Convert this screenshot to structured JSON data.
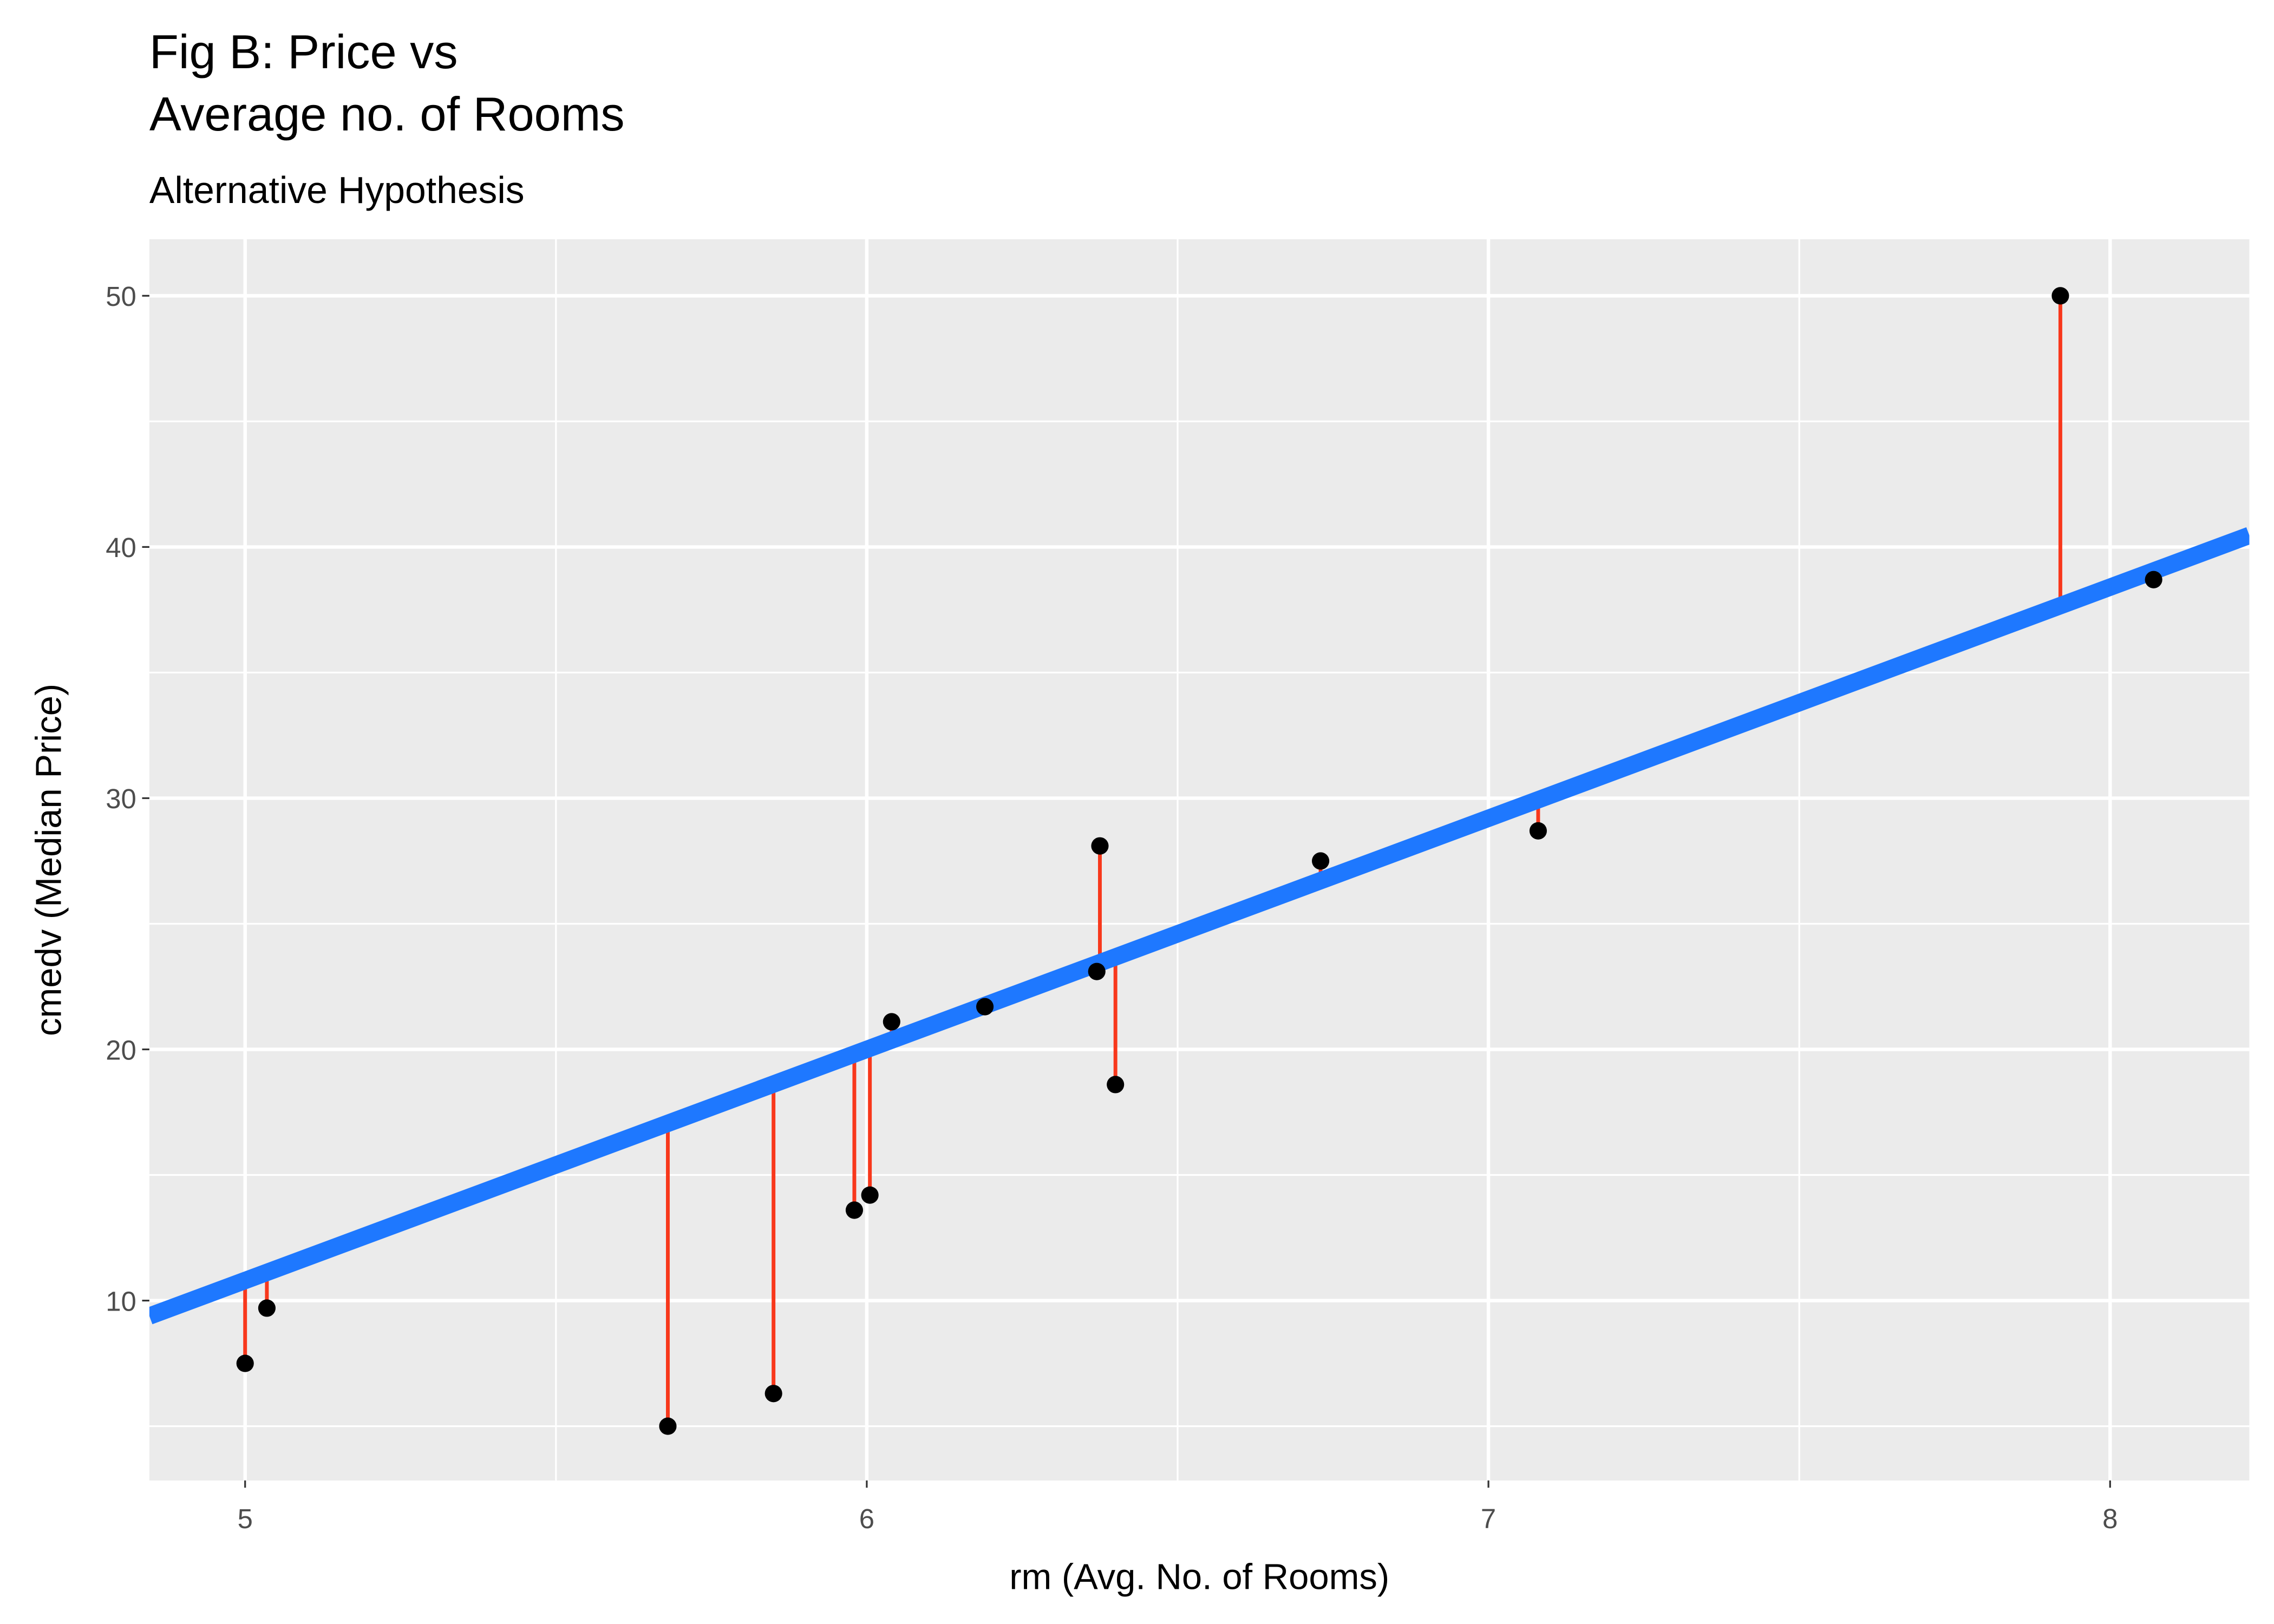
{
  "chart_data": {
    "type": "scatter",
    "title": [
      "Fig B: Price vs",
      "Average no. of Rooms"
    ],
    "subtitle": "Alternative Hypothesis",
    "x_label": "rm (Avg. No. of Rooms)",
    "y_label": "cmedv (Median Price)",
    "x": [
      5.0,
      5.035,
      5.68,
      5.85,
      5.98,
      6.005,
      6.04,
      6.19,
      6.37,
      6.375,
      6.4,
      6.73,
      7.08,
      7.92,
      8.07
    ],
    "y": [
      7.5,
      9.7,
      5.0,
      6.3,
      13.6,
      14.2,
      21.1,
      21.7,
      23.1,
      28.1,
      18.6,
      27.5,
      28.7,
      50.0,
      38.7
    ],
    "point_color": "#000000",
    "fit": {
      "intercept": -35.2,
      "slope": 9.2,
      "color": "#1e78ff"
    },
    "residual_color": "#f8381c",
    "xlim": [
      4.846,
      8.224
    ],
    "ylim": [
      2.84,
      52.25
    ],
    "xticks": [
      5,
      6,
      7,
      8
    ],
    "yticks": [
      10,
      20,
      30,
      40,
      50
    ],
    "grid": true
  }
}
